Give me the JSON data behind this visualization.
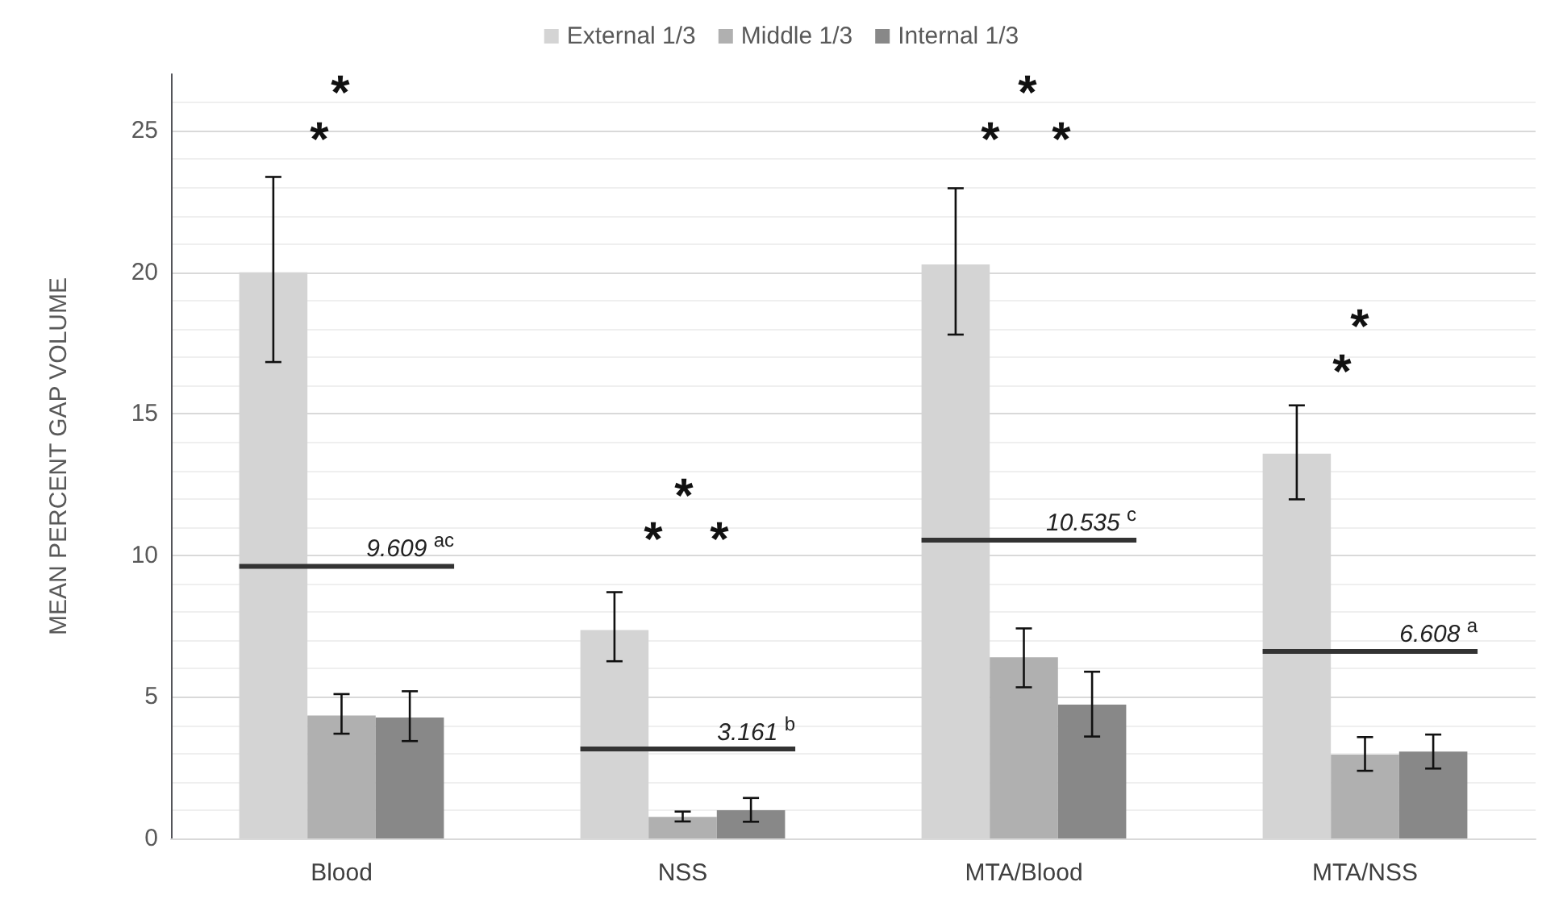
{
  "chart_data": {
    "type": "bar",
    "categories": [
      "Blood",
      "NSS",
      "MTA/Blood",
      "MTA/NSS"
    ],
    "ylabel": "MEAN PERCENT GAP VOLUME",
    "series": [
      {
        "name": "External 1/3",
        "color": "#d4d4d4",
        "values": [
          20.0,
          7.36,
          20.28,
          13.59
        ],
        "errors": [
          [
            16.83,
            23.37
          ],
          [
            6.26,
            8.7
          ],
          [
            17.8,
            22.97
          ],
          [
            11.98,
            15.3
          ]
        ]
      },
      {
        "name": "Middle 1/3",
        "color": "#b0b0b0",
        "values": [
          4.34,
          0.76,
          6.4,
          2.96
        ],
        "errors": [
          [
            3.7,
            5.1
          ],
          [
            0.6,
            0.95
          ],
          [
            5.34,
            7.42
          ],
          [
            2.39,
            3.58
          ]
        ]
      },
      {
        "name": "Internal 1/3",
        "color": "#888888",
        "values": [
          4.27,
          1.0,
          4.73,
          3.07
        ],
        "errors": [
          [
            3.44,
            5.2
          ],
          [
            0.59,
            1.43
          ],
          [
            3.6,
            5.89
          ],
          [
            2.47,
            3.67
          ]
        ]
      }
    ],
    "ylim": [
      0,
      27
    ],
    "yticks": [
      0,
      5,
      10,
      15,
      20,
      25
    ],
    "grid": true,
    "legend": "top",
    "ref_lines": [
      {
        "axis": "y",
        "value": 9.609,
        "label": "9.609 $^{ac}$",
        "color": "#333333"
      },
      {
        "axis": "y",
        "value": 3.161,
        "label": "3.161 $^{b}$",
        "color": "#333333"
      },
      {
        "axis": "y",
        "value": 10.535,
        "label": "10.535 $^{c}$",
        "color": "#333333"
      },
      {
        "axis": "y",
        "value": 6.608,
        "label": "6.608 $^{a}$",
        "color": "#333333"
      }
    ],
    "annotations": [
      "*",
      "*",
      "*",
      "*",
      "*",
      "*",
      "*",
      "*",
      "*",
      "*"
    ]
  }
}
